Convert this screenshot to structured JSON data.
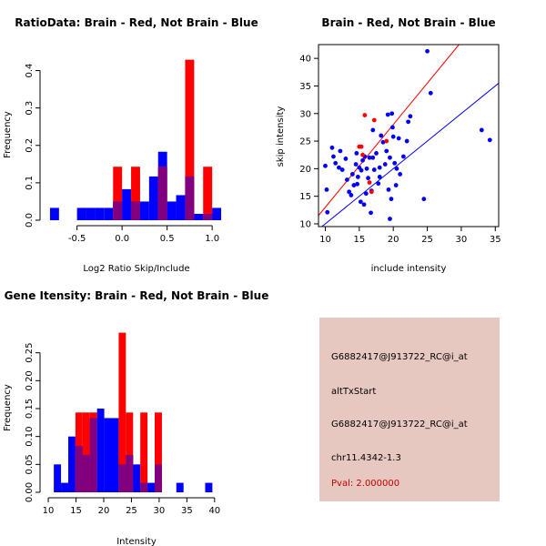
{
  "colors": {
    "brain": "#ff0000",
    "not_brain": "#0000ff",
    "overlap": "#800080",
    "axis": "#000000",
    "panel_bg": "#e6c8c0",
    "pval": "#c00000"
  },
  "chart_data": [
    {
      "type": "histogram",
      "title": "RatioData: Brain - Red, Not Brain - Blue",
      "xlabel": "Log2 Ratio Skip/Include",
      "ylabel": "Frequency",
      "xlim": [
        -0.85,
        1.15
      ],
      "ylim": [
        0,
        0.45
      ],
      "xticks": [
        -0.5,
        0.0,
        0.5,
        1.0
      ],
      "xtick_labels": [
        "-0.5",
        "0.0",
        "0.5",
        "1.0"
      ],
      "yticks": [
        0.0,
        0.1,
        0.2,
        0.3,
        0.4
      ],
      "ytick_labels": [
        "0.0",
        "0.1",
        "0.2",
        "0.3",
        "0.4"
      ],
      "bin_starts": [
        -0.8,
        -0.7,
        -0.6,
        -0.5,
        -0.4,
        -0.3,
        -0.2,
        -0.1,
        0.0,
        0.1,
        0.2,
        0.3,
        0.4,
        0.5,
        0.6,
        0.7,
        0.8,
        0.9,
        1.0,
        1.1
      ],
      "bin_width": 0.1,
      "series": [
        {
          "name": "Not Brain",
          "color": "blue",
          "values": [
            0.033,
            0,
            0,
            0.033,
            0.033,
            0.033,
            0.033,
            0.05,
            0.083,
            0.05,
            0.05,
            0.117,
            0.183,
            0.05,
            0.067,
            0.117,
            0.017,
            0.017,
            0.033,
            0
          ]
        },
        {
          "name": "Brain",
          "color": "red",
          "values": [
            0,
            0,
            0,
            0,
            0,
            0,
            0,
            0.143,
            0,
            0.143,
            0,
            0,
            0.143,
            0,
            0,
            0.429,
            0,
            0.143,
            0,
            0
          ]
        }
      ]
    },
    {
      "type": "scatter",
      "title": "Brain - Red, Not Brain - Blue",
      "xlabel": "include intensity",
      "ylabel": "skip intensity",
      "xlim": [
        9,
        35.5
      ],
      "ylim": [
        9.5,
        42.5
      ],
      "xticks": [
        10,
        15,
        20,
        25,
        30,
        35
      ],
      "xtick_labels": [
        "10",
        "15",
        "20",
        "25",
        "30",
        "35"
      ],
      "yticks": [
        10,
        15,
        20,
        25,
        30,
        35,
        40
      ],
      "ytick_labels": [
        "10",
        "15",
        "20",
        "25",
        "30",
        "35",
        "40"
      ],
      "lines": [
        {
          "name": "Not Brain fit",
          "color": "blue",
          "slope": 1.0,
          "intercept": 0
        },
        {
          "name": "Brain fit",
          "color": "red",
          "slope": 1.5,
          "intercept": -2
        }
      ],
      "series": [
        {
          "name": "Not Brain",
          "color": "blue",
          "points": [
            [
              10.0,
              20.5
            ],
            [
              10.2,
              16.2
            ],
            [
              10.3,
              12.1
            ],
            [
              11.0,
              23.8
            ],
            [
              11.2,
              22.2
            ],
            [
              11.5,
              21.0
            ],
            [
              12.0,
              20.2
            ],
            [
              12.2,
              23.2
            ],
            [
              12.5,
              19.8
            ],
            [
              13.0,
              21.8
            ],
            [
              13.2,
              18.0
            ],
            [
              13.5,
              15.8
            ],
            [
              13.8,
              15.2
            ],
            [
              14.0,
              19.0
            ],
            [
              14.2,
              17.0
            ],
            [
              14.5,
              20.8
            ],
            [
              14.6,
              22.8
            ],
            [
              14.8,
              18.5
            ],
            [
              15.0,
              20.2
            ],
            [
              15.2,
              14.0
            ],
            [
              15.3,
              19.7
            ],
            [
              15.5,
              21.5
            ],
            [
              15.7,
              13.5
            ],
            [
              15.8,
              22.2
            ],
            [
              16.0,
              15.5
            ],
            [
              16.1,
              20.0
            ],
            [
              16.3,
              18.3
            ],
            [
              16.5,
              22.0
            ],
            [
              16.7,
              12.0
            ],
            [
              16.8,
              16.0
            ],
            [
              17.0,
              27.0
            ],
            [
              17.2,
              19.8
            ],
            [
              17.5,
              22.8
            ],
            [
              17.8,
              17.3
            ],
            [
              18.0,
              20.2
            ],
            [
              18.2,
              26.0
            ],
            [
              18.5,
              24.8
            ],
            [
              18.8,
              20.8
            ],
            [
              19.0,
              23.2
            ],
            [
              19.2,
              29.8
            ],
            [
              19.3,
              16.2
            ],
            [
              19.5,
              22.0
            ],
            [
              19.5,
              10.9
            ],
            [
              19.7,
              14.5
            ],
            [
              19.8,
              30.0
            ],
            [
              19.9,
              27.5
            ],
            [
              20.0,
              25.8
            ],
            [
              20.2,
              21.0
            ],
            [
              20.5,
              20.0
            ],
            [
              20.8,
              25.5
            ],
            [
              21.0,
              19.0
            ],
            [
              21.5,
              22.2
            ],
            [
              22.0,
              25.0
            ],
            [
              22.2,
              28.5
            ],
            [
              22.5,
              29.5
            ],
            [
              24.5,
              14.5
            ],
            [
              25.0,
              41.3
            ],
            [
              25.5,
              33.7
            ],
            [
              33.0,
              27.0
            ],
            [
              34.2,
              25.2
            ],
            [
              17.0,
              22.0
            ],
            [
              18.0,
              18.5
            ],
            [
              14.7,
              17.2
            ],
            [
              20.4,
              17.0
            ]
          ]
        },
        {
          "name": "Brain",
          "color": "red",
          "points": [
            [
              15.0,
              24.0
            ],
            [
              15.5,
              22.5
            ],
            [
              15.8,
              29.7
            ],
            [
              16.5,
              17.5
            ],
            [
              17.2,
              28.8
            ],
            [
              19.0,
              25.0
            ],
            [
              15.3,
              24.0
            ],
            [
              16.8,
              15.8
            ]
          ]
        }
      ]
    },
    {
      "type": "histogram",
      "title": "Gene Itensity: Brain - Red, Not Brain - Blue",
      "xlabel": "Intensity",
      "ylabel": "Frequency",
      "xlim": [
        9.5,
        42
      ],
      "ylim": [
        0,
        0.3
      ],
      "xticks": [
        10,
        15,
        20,
        25,
        30,
        35,
        40
      ],
      "xtick_labels": [
        "10",
        "15",
        "20",
        "25",
        "30",
        "35",
        "40"
      ],
      "yticks": [
        0.0,
        0.05,
        0.1,
        0.15,
        0.2,
        0.25
      ],
      "ytick_labels": [
        "0.00",
        "0.05",
        "0.10",
        "0.15",
        "0.20",
        "0.25"
      ],
      "bin_starts": [
        11,
        12.3,
        13.6,
        14.9,
        16.2,
        17.5,
        18.8,
        20.1,
        21.4,
        22.7,
        24.0,
        25.3,
        26.6,
        27.9,
        29.2,
        30.5,
        31.8,
        33.1,
        34.4,
        35.7,
        37.0,
        38.3,
        39.6
      ],
      "bin_width": 1.3,
      "series": [
        {
          "name": "Not Brain",
          "color": "blue",
          "values": [
            0.05,
            0.017,
            0.1,
            0.083,
            0.067,
            0.133,
            0.15,
            0.133,
            0.133,
            0.05,
            0.067,
            0.05,
            0.017,
            0.017,
            0.05,
            0,
            0,
            0.017,
            0,
            0,
            0,
            0.017,
            0
          ]
        },
        {
          "name": "Brain",
          "color": "red",
          "values": [
            0,
            0,
            0,
            0.143,
            0.143,
            0.143,
            0,
            0,
            0,
            0.286,
            0.143,
            0,
            0.143,
            0,
            0.143,
            0,
            0,
            0,
            0,
            0,
            0,
            0,
            0
          ]
        }
      ]
    }
  ],
  "info_panel": {
    "lines": [
      "G6882417@J913722_RC@i_at",
      "altTxStart",
      "G6882417@J913722_RC@i_at",
      "chr11.4342-1.3"
    ],
    "pval": "Pval: 2.000000"
  }
}
